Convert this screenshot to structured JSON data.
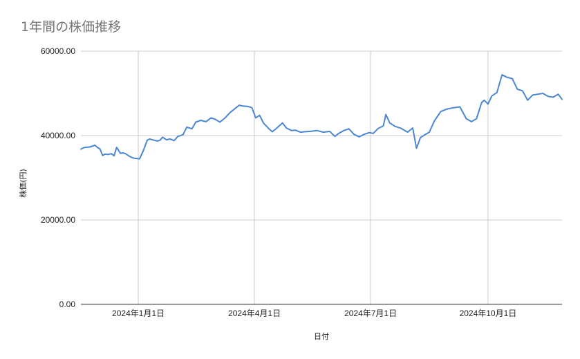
{
  "chart_data": {
    "type": "line",
    "title": "1年間の株価推移",
    "xlabel": "日付",
    "ylabel": "株価(円)",
    "ylim": [
      0,
      60000
    ],
    "y_ticks": [
      {
        "value": 0,
        "label": "0.00"
      },
      {
        "value": 20000,
        "label": "20000.00"
      },
      {
        "value": 40000,
        "label": "40000.00"
      },
      {
        "value": 60000,
        "label": "60000.00"
      }
    ],
    "xlim": [
      "2023-11-17",
      "2024-11-28"
    ],
    "x_ticks": [
      {
        "date": "2024-01-01",
        "label": "2024年1月1日"
      },
      {
        "date": "2024-04-01",
        "label": "2024年4月1日"
      },
      {
        "date": "2024-07-01",
        "label": "2024年7月1日"
      },
      {
        "date": "2024-10-01",
        "label": "2024年10月1日"
      }
    ],
    "grid": true,
    "legend": "none",
    "colors": {
      "series": "#4a86d4",
      "grid": "#cccccc",
      "axis": "#333333",
      "title": "#757575"
    },
    "series": [
      {
        "x": [
          "2023-11-17",
          "2023-11-20",
          "2023-11-24",
          "2023-11-28",
          "2023-11-30",
          "2023-12-02",
          "2023-12-04",
          "2023-12-06",
          "2023-12-08",
          "2023-12-11",
          "2023-12-13",
          "2023-12-15",
          "2023-12-18",
          "2023-12-20",
          "2023-12-22",
          "2023-12-25",
          "2023-12-27",
          "2023-12-29",
          "2024-01-02",
          "2024-01-05",
          "2024-01-08",
          "2024-01-10",
          "2024-01-12",
          "2024-01-16",
          "2024-01-18",
          "2024-01-20",
          "2024-01-23",
          "2024-01-26",
          "2024-01-29",
          "2024-02-01",
          "2024-02-05",
          "2024-02-08",
          "2024-02-12",
          "2024-02-15",
          "2024-02-19",
          "2024-02-23",
          "2024-02-27",
          "2024-03-01",
          "2024-03-05",
          "2024-03-09",
          "2024-03-13",
          "2024-03-16",
          "2024-03-20",
          "2024-03-23",
          "2024-03-27",
          "2024-03-30",
          "2024-04-02",
          "2024-04-05",
          "2024-04-08",
          "2024-04-12",
          "2024-04-15",
          "2024-04-19",
          "2024-04-23",
          "2024-04-26",
          "2024-04-30",
          "2024-05-03",
          "2024-05-07",
          "2024-05-10",
          "2024-05-15",
          "2024-05-20",
          "2024-05-25",
          "2024-05-30",
          "2024-06-03",
          "2024-06-06",
          "2024-06-10",
          "2024-06-14",
          "2024-06-18",
          "2024-06-22",
          "2024-06-26",
          "2024-06-30",
          "2024-07-03",
          "2024-07-07",
          "2024-07-11",
          "2024-07-13",
          "2024-07-16",
          "2024-07-20",
          "2024-07-25",
          "2024-07-30",
          "2024-08-03",
          "2024-08-06",
          "2024-08-09",
          "2024-08-12",
          "2024-08-16",
          "2024-08-20",
          "2024-08-25",
          "2024-08-30",
          "2024-09-04",
          "2024-09-09",
          "2024-09-14",
          "2024-09-18",
          "2024-09-22",
          "2024-09-26",
          "2024-09-28",
          "2024-10-01",
          "2024-10-04",
          "2024-10-08",
          "2024-10-12",
          "2024-10-16",
          "2024-10-20",
          "2024-10-24",
          "2024-10-28",
          "2024-11-01",
          "2024-11-05",
          "2024-11-09",
          "2024-11-13",
          "2024-11-17",
          "2024-11-21",
          "2024-11-25",
          "2024-11-28"
        ],
        "values": [
          36800,
          37200,
          37300,
          37700,
          37200,
          36800,
          35300,
          35600,
          35500,
          35700,
          35200,
          37200,
          35800,
          35900,
          35700,
          35100,
          34800,
          34600,
          34500,
          36500,
          38900,
          39200,
          39000,
          38700,
          38900,
          39600,
          39000,
          39200,
          38800,
          39800,
          40200,
          42000,
          41600,
          43200,
          43600,
          43300,
          44200,
          43900,
          43200,
          44200,
          45500,
          46200,
          47200,
          47000,
          46900,
          46600,
          44200,
          44800,
          43000,
          41700,
          40900,
          41900,
          43000,
          41800,
          41200,
          41300,
          40800,
          40900,
          41000,
          41200,
          40800,
          41000,
          39800,
          40500,
          41200,
          41600,
          40300,
          39700,
          40300,
          40700,
          40500,
          41700,
          42300,
          45000,
          43000,
          42200,
          41700,
          40800,
          41800,
          37000,
          39500,
          40100,
          40800,
          43500,
          45700,
          46300,
          46600,
          46800,
          44000,
          43300,
          44000,
          47800,
          48400,
          47500,
          49400,
          50200,
          54400,
          53800,
          53500,
          51000,
          50600,
          48400,
          49600,
          49800,
          50000,
          49300,
          49100,
          49800,
          48600
        ]
      }
    ]
  }
}
